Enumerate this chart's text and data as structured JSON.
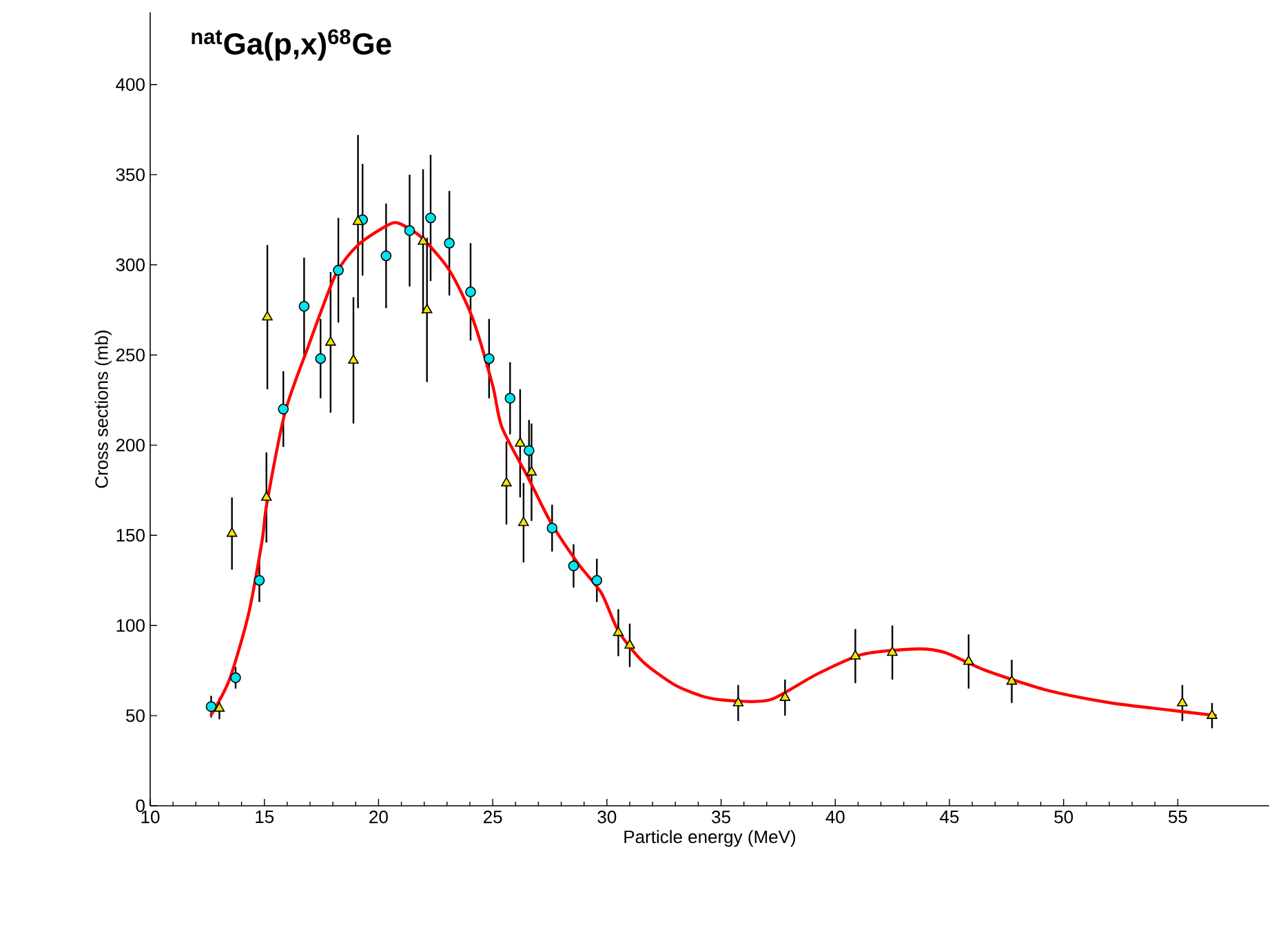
{
  "chart_data": {
    "type": "scatter",
    "title": "$^{nat}$Ga(p,x)$^{68}$Ge",
    "xlabel": "Particle energy (MeV)",
    "ylabel": "Cross sections (mb)",
    "xlim": [
      10,
      59
    ],
    "ylim": [
      0,
      440
    ],
    "xticks": [
      10,
      15,
      20,
      25,
      30,
      35,
      40,
      45,
      50,
      55
    ],
    "yticks": [
      0,
      50,
      100,
      150,
      200,
      250,
      300,
      350,
      400
    ],
    "series": [
      {
        "marker": "circle",
        "color": "#00e5ee",
        "x": [
          12.67,
          13.74,
          14.78,
          15.83,
          16.74,
          17.46,
          18.24,
          19.3,
          20.33,
          21.36,
          22.28,
          23.1,
          24.03,
          24.84,
          25.76,
          26.59,
          27.6,
          28.54,
          29.56
        ],
        "values": [
          55,
          71,
          125,
          220,
          277,
          248,
          297,
          325,
          305,
          319,
          326,
          312,
          285,
          248,
          226,
          197,
          154,
          133,
          125
        ],
        "errors": [
          6,
          6,
          12,
          21,
          27,
          22,
          29,
          31,
          29,
          31,
          35,
          29,
          27,
          22,
          20,
          17,
          13,
          12,
          12
        ]
      },
      {
        "marker": "triangle",
        "color": "#f5e400",
        "x": [
          13.03,
          13.58,
          15.09,
          15.13,
          17.9,
          18.9,
          19.1,
          21.95,
          22.12,
          25.6,
          26.2,
          26.35,
          26.7,
          30.5,
          31.0,
          35.75,
          37.8,
          40.88,
          42.5,
          45.84,
          47.73,
          55.2,
          56.5
        ],
        "values": [
          54,
          151,
          171,
          271,
          257,
          247,
          324,
          313,
          275,
          179,
          201,
          157,
          185,
          96,
          89,
          57,
          60,
          83,
          85,
          80,
          69,
          57,
          50
        ],
        "errors": [
          6,
          20,
          25,
          40,
          39,
          35,
          48,
          40,
          40,
          23,
          30,
          22,
          27,
          13,
          12,
          10,
          10,
          15,
          15,
          15,
          12,
          10,
          7
        ]
      },
      {
        "type": "line",
        "marker": "none",
        "line_style": "solid",
        "color": "#ff0000",
        "x": [
          12.65,
          13.47,
          14.3,
          14.9,
          15.1,
          15.9,
          16.9,
          18.1,
          19.1,
          20.4,
          20.9,
          21.9,
          23.1,
          24.1,
          25.0,
          25.4,
          26.55,
          27.55,
          28.76,
          29.76,
          30.5,
          31.57,
          32.98,
          34.4,
          35.8,
          37.2,
          39.2,
          41.2,
          43.6,
          44.8,
          46.6,
          49.3,
          52.1,
          54.7,
          56.7
        ],
        "values": [
          50,
          70,
          106,
          147,
          167,
          218,
          254,
          294,
          311,
          322,
          323,
          315,
          297,
          271,
          233,
          210,
          182,
          157,
          134,
          118,
          97,
          80,
          67,
          60,
          58,
          59,
          73,
          84,
          87,
          85,
          75,
          64,
          57,
          53,
          50
        ]
      }
    ]
  }
}
